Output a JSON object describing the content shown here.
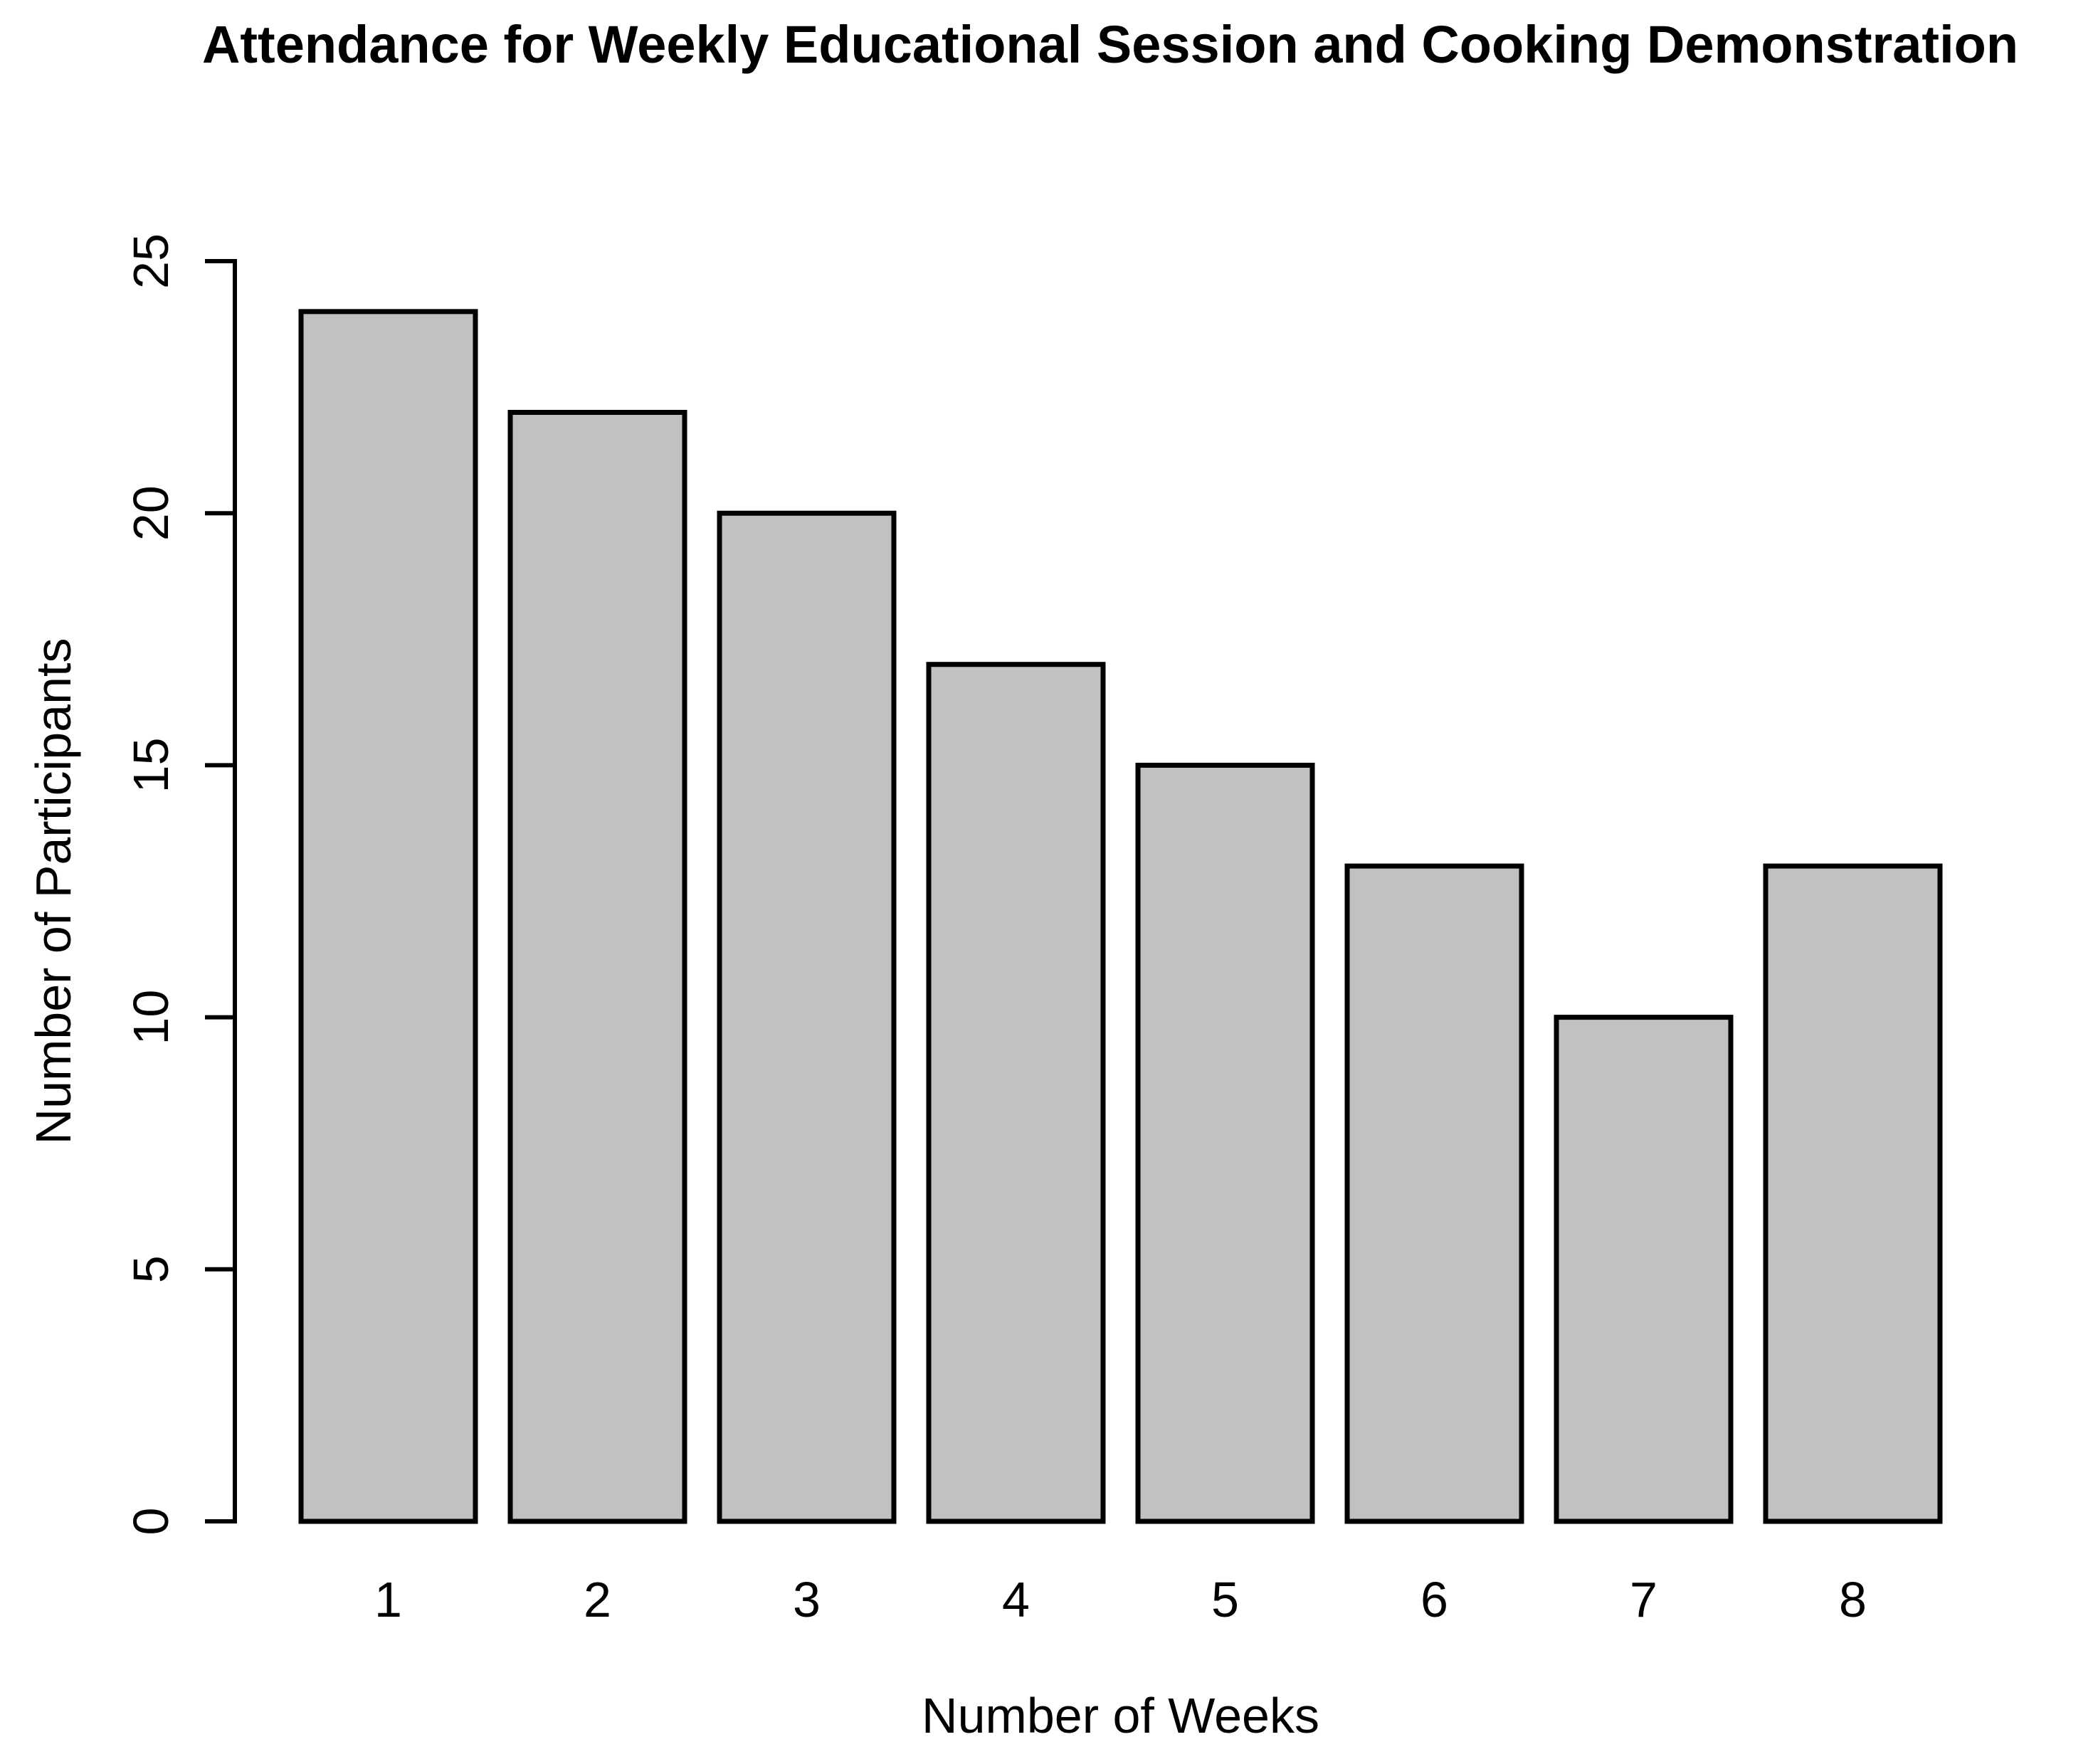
{
  "figure": {
    "background": "#ffffff"
  },
  "chart_data": {
    "type": "bar",
    "title": "Attendance for Weekly Educational Session and Cooking Demonstration",
    "xlabel": "Number of Weeks",
    "ylabel": "Number of Participants",
    "categories": [
      "1",
      "2",
      "3",
      "4",
      "5",
      "6",
      "7",
      "8"
    ],
    "values": [
      24,
      22,
      20,
      17,
      15,
      13,
      10,
      13
    ],
    "ylim": [
      0,
      25
    ],
    "yticks": [
      0,
      5,
      10,
      15,
      20,
      25
    ],
    "grid": false,
    "legend_position": "none",
    "bar_fill": "#c1c1c1",
    "bar_border": "#000000",
    "text_color": "#000000",
    "axis_color": "#000000"
  }
}
